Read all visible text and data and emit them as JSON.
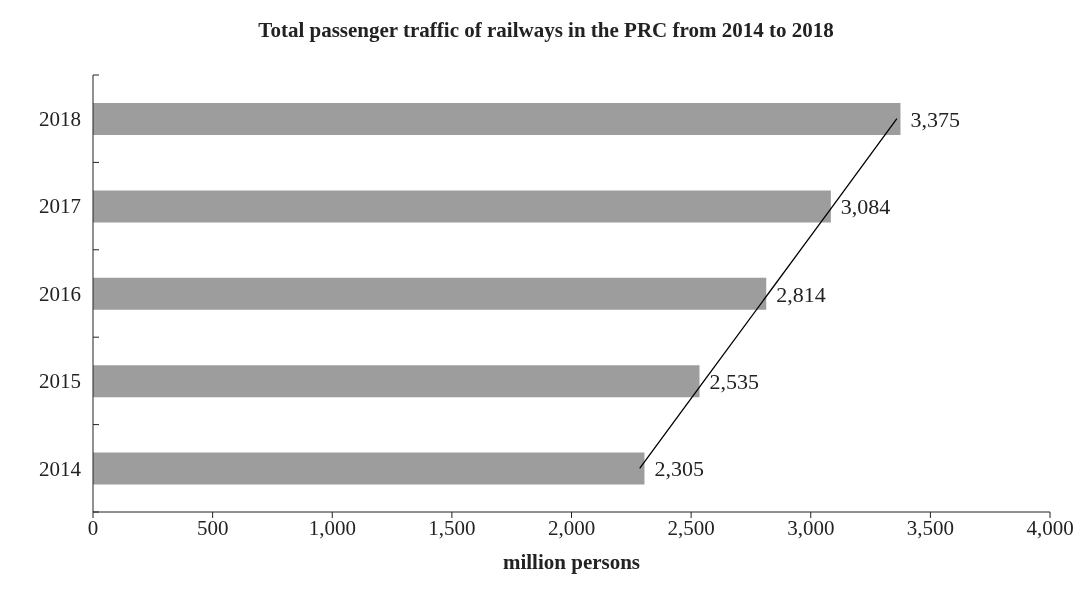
{
  "chart_data": {
    "type": "bar",
    "orientation": "horizontal",
    "title": "Total passenger traffic of railways in the PRC from 2014 to 2018",
    "xlabel": "million persons",
    "categories": [
      "2018",
      "2017",
      "2016",
      "2015",
      "2014"
    ],
    "series": [
      {
        "color": "#9d9d9d",
        "values": [
          3375,
          3084,
          2814,
          2535,
          2305
        ],
        "value_labels": [
          "3,375",
          "3,084",
          "2,814",
          "2,535",
          "2,305"
        ]
      },
      {
        "type": "line",
        "color": "#000000",
        "values": [
          3360,
          3092,
          2823,
          2554,
          2285
        ]
      }
    ],
    "xlim": [
      0,
      4000
    ],
    "xticks": [
      0,
      500,
      {
        "value": 1000,
        "label": "1,000"
      },
      {
        "value": 1500,
        "label": "1,500"
      },
      {
        "value": 2000,
        "label": "2,000"
      },
      {
        "value": 2500,
        "label": "2,500"
      },
      {
        "value": 3000,
        "label": "3,000"
      },
      {
        "value": 3500,
        "label": "3,500"
      },
      {
        "value": 4000,
        "label": "4,000"
      }
    ],
    "grid": false,
    "legend": false,
    "marker": "none",
    "line_style": "solid"
  }
}
